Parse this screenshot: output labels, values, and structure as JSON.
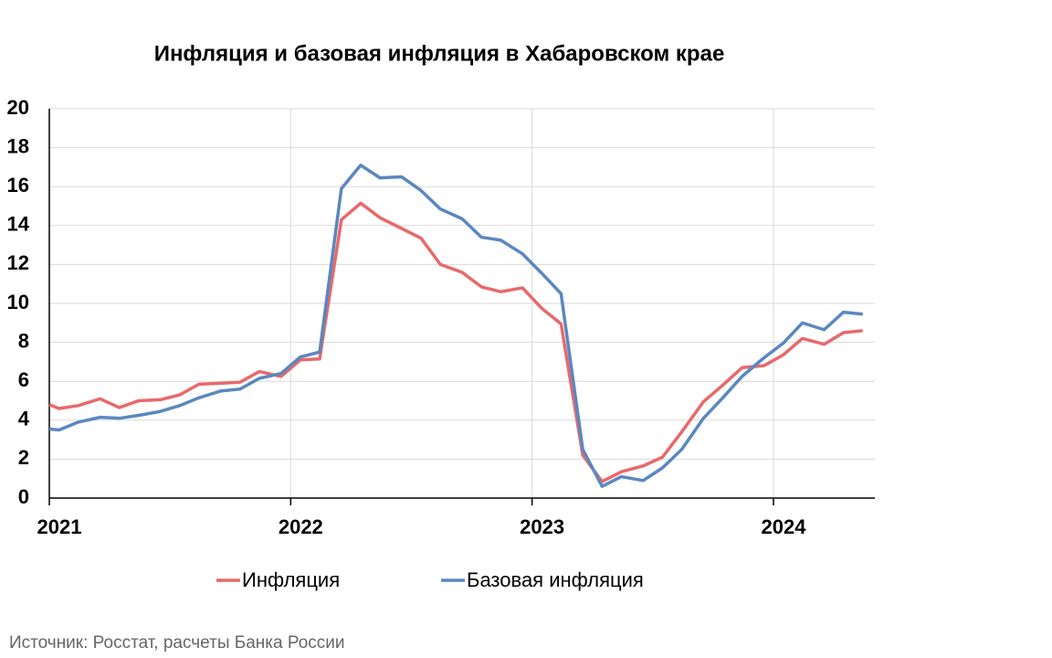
{
  "chart_data": {
    "type": "line",
    "title": "Инфляция и базовая инфляция в Хабаровском крае",
    "source": "Источник: Росстат, расчеты Банка России",
    "x": [
      2021,
      2021.04,
      2021.12,
      2021.21,
      2021.29,
      2021.37,
      2021.46,
      2021.54,
      2021.62,
      2021.71,
      2021.79,
      2021.87,
      2021.96,
      2022.04,
      2022.12,
      2022.21,
      2022.29,
      2022.37,
      2022.46,
      2022.54,
      2022.62,
      2022.71,
      2022.79,
      2022.87,
      2022.96,
      2023.04,
      2023.12,
      2023.21,
      2023.29,
      2023.37,
      2023.46,
      2023.54,
      2023.62,
      2023.71,
      2023.79,
      2023.87,
      2023.96,
      2024.04,
      2024.12,
      2024.21,
      2024.29,
      2024.37
    ],
    "series": [
      {
        "name": "Инфляция",
        "color": "#e8696b",
        "values": [
          4.8,
          4.6,
          4.75,
          5.1,
          4.65,
          5.0,
          5.05,
          5.3,
          5.85,
          5.9,
          5.95,
          6.5,
          6.25,
          7.1,
          7.15,
          14.3,
          15.15,
          14.4,
          13.85,
          13.35,
          12.0,
          11.6,
          10.85,
          10.6,
          10.8,
          9.75,
          8.95,
          2.2,
          0.85,
          1.35,
          1.65,
          2.1,
          3.4,
          4.95,
          5.8,
          6.7,
          6.8,
          7.35,
          8.2,
          7.9,
          8.5,
          8.6
        ]
      },
      {
        "name": "Базовая инфляция",
        "color": "#5b87c0",
        "values": [
          3.55,
          3.5,
          3.9,
          4.15,
          4.1,
          4.25,
          4.45,
          4.75,
          5.15,
          5.5,
          5.6,
          6.15,
          6.4,
          7.25,
          7.5,
          15.9,
          17.1,
          16.45,
          16.5,
          15.8,
          14.85,
          14.35,
          13.4,
          13.25,
          12.55,
          11.55,
          10.5,
          2.5,
          0.6,
          1.1,
          0.9,
          1.55,
          2.5,
          4.1,
          5.15,
          6.25,
          7.2,
          7.95,
          9.0,
          8.65,
          9.55,
          9.45
        ]
      }
    ],
    "xlim": [
      2021,
      2024.42
    ],
    "xticks": [
      2021,
      2022,
      2023,
      2024
    ],
    "ylim": [
      0,
      20
    ],
    "yticks": [
      0,
      2,
      4,
      6,
      8,
      10,
      12,
      14,
      16,
      18,
      20
    ],
    "grid": true,
    "legend": "bottom"
  }
}
